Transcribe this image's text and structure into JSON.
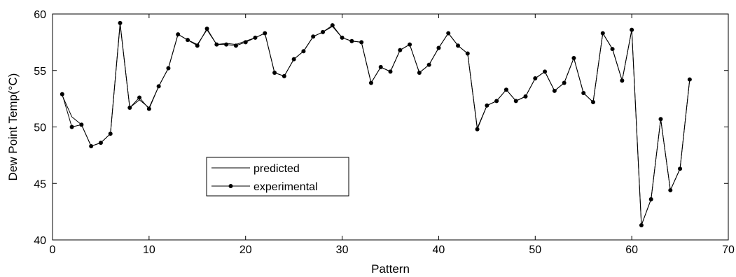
{
  "chart_data": {
    "type": "line",
    "title": "",
    "xlabel": "Pattern",
    "ylabel": "Dew Point Temp(°C)",
    "xlim": [
      0,
      70
    ],
    "ylim": [
      40,
      60
    ],
    "xticks": [
      0,
      10,
      20,
      30,
      40,
      50,
      60,
      70
    ],
    "yticks": [
      40,
      45,
      50,
      55,
      60
    ],
    "grid": false,
    "legend_position": "center-left",
    "series": [
      {
        "name": "predicted",
        "marker": "none",
        "color": "#000000",
        "x": [
          1,
          2,
          3,
          4,
          5,
          6,
          7,
          8,
          9,
          10,
          11,
          12,
          13,
          14,
          15,
          16,
          17,
          18,
          19,
          20,
          21,
          22,
          23,
          24,
          25,
          26,
          27,
          28,
          29,
          30,
          31,
          32,
          33,
          34,
          35,
          36,
          37,
          38,
          39,
          40,
          41,
          42,
          43,
          44,
          45,
          46,
          47,
          48,
          49,
          50,
          51,
          52,
          53,
          54,
          55,
          56,
          57,
          58,
          59,
          60,
          61,
          62,
          63,
          64,
          65,
          66
        ],
        "y": [
          52.8,
          50.9,
          50.2,
          48.3,
          48.6,
          49.4,
          59.1,
          51.7,
          52.4,
          51.7,
          53.6,
          55.2,
          58.2,
          57.7,
          57.3,
          58.6,
          57.3,
          57.4,
          57.3,
          57.6,
          57.9,
          58.3,
          54.8,
          54.5,
          56.0,
          56.7,
          58.0,
          58.4,
          58.9,
          57.9,
          57.6,
          57.5,
          53.9,
          55.3,
          54.9,
          56.8,
          57.3,
          54.8,
          55.5,
          57.0,
          58.3,
          57.2,
          56.5,
          49.9,
          51.9,
          52.3,
          53.3,
          52.3,
          52.7,
          54.3,
          54.9,
          53.2,
          53.9,
          56.1,
          53.0,
          52.2,
          58.3,
          56.9,
          54.1,
          58.6,
          41.3,
          43.6,
          50.7,
          44.4,
          46.3,
          54.2
        ]
      },
      {
        "name": "experimental",
        "marker": "circle",
        "color": "#000000",
        "x": [
          1,
          2,
          3,
          4,
          5,
          6,
          7,
          8,
          9,
          10,
          11,
          12,
          13,
          14,
          15,
          16,
          17,
          18,
          19,
          20,
          21,
          22,
          23,
          24,
          25,
          26,
          27,
          28,
          29,
          30,
          31,
          32,
          33,
          34,
          35,
          36,
          37,
          38,
          39,
          40,
          41,
          42,
          43,
          44,
          45,
          46,
          47,
          48,
          49,
          50,
          51,
          52,
          53,
          54,
          55,
          56,
          57,
          58,
          59,
          60,
          61,
          62,
          63,
          64,
          65,
          66
        ],
        "y": [
          52.9,
          50.0,
          50.2,
          48.3,
          48.6,
          49.4,
          59.2,
          51.7,
          52.6,
          51.6,
          53.6,
          55.2,
          58.2,
          57.7,
          57.2,
          58.7,
          57.3,
          57.3,
          57.2,
          57.5,
          57.9,
          58.3,
          54.8,
          54.5,
          56.0,
          56.7,
          58.0,
          58.4,
          59.0,
          57.9,
          57.6,
          57.5,
          53.9,
          55.3,
          54.9,
          56.8,
          57.3,
          54.8,
          55.5,
          57.0,
          58.3,
          57.2,
          56.5,
          49.8,
          51.9,
          52.3,
          53.3,
          52.3,
          52.7,
          54.3,
          54.9,
          53.2,
          53.9,
          56.1,
          53.0,
          52.2,
          58.3,
          56.9,
          54.1,
          58.6,
          41.3,
          43.6,
          50.7,
          44.4,
          46.3,
          54.2
        ]
      }
    ]
  }
}
